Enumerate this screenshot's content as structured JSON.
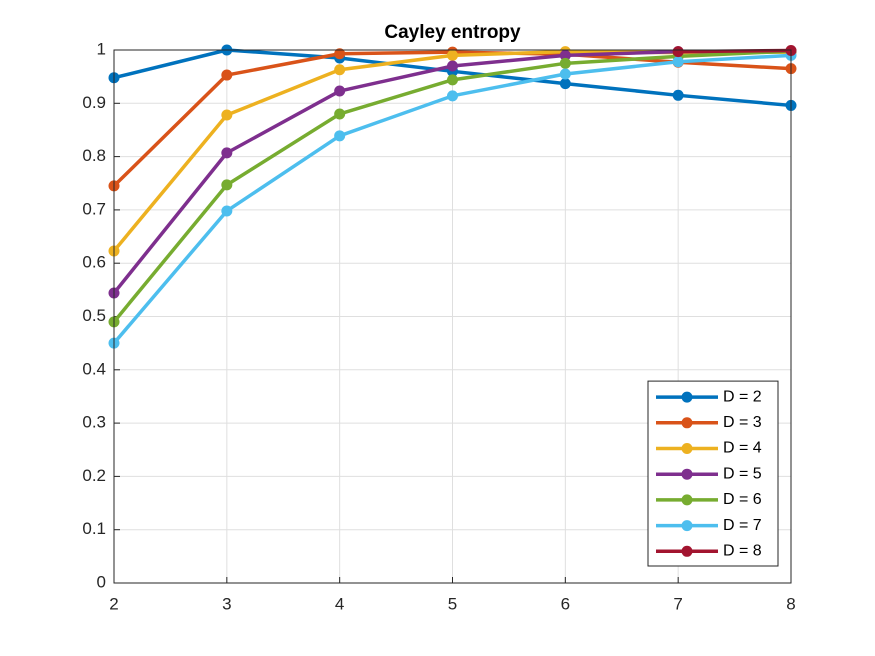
{
  "chart_data": {
    "type": "line",
    "title": "Cayley entropy",
    "x": [
      2,
      3,
      4,
      5,
      6,
      7,
      8
    ],
    "xlim": [
      2,
      8
    ],
    "xticks": [
      2,
      3,
      4,
      5,
      6,
      7,
      8
    ],
    "ylim": [
      0,
      1
    ],
    "yticks": [
      0,
      0.1,
      0.2,
      0.3,
      0.4,
      0.5,
      0.6,
      0.7,
      0.8,
      0.9,
      1
    ],
    "grid": true,
    "legend_position": "lower right",
    "series": [
      {
        "name": "D = 2",
        "color": "#0072BD",
        "values": [
          0.948,
          1.0,
          0.985,
          0.96,
          0.937,
          0.915,
          0.896
        ]
      },
      {
        "name": "D = 3",
        "color": "#D95319",
        "values": [
          0.745,
          0.953,
          0.993,
          0.996,
          0.992,
          0.977,
          0.965
        ]
      },
      {
        "name": "D = 4",
        "color": "#EDB120",
        "values": [
          0.623,
          0.878,
          0.963,
          0.99,
          0.997,
          0.995,
          0.996
        ]
      },
      {
        "name": "D = 5",
        "color": "#7E2F8E",
        "values": [
          0.544,
          0.807,
          0.923,
          0.97,
          0.99,
          0.997,
          0.998
        ]
      },
      {
        "name": "D = 6",
        "color": "#77AC30",
        "values": [
          0.49,
          0.747,
          0.88,
          0.944,
          0.975,
          0.988,
          0.998
        ]
      },
      {
        "name": "D = 7",
        "color": "#4DBEEE",
        "values": [
          0.45,
          0.698,
          0.839,
          0.914,
          0.955,
          0.978,
          0.99
        ]
      },
      {
        "name": "D = 8",
        "color": "#A2142F",
        "values": [
          null,
          null,
          null,
          null,
          null,
          0.997,
          0.999
        ]
      }
    ]
  }
}
